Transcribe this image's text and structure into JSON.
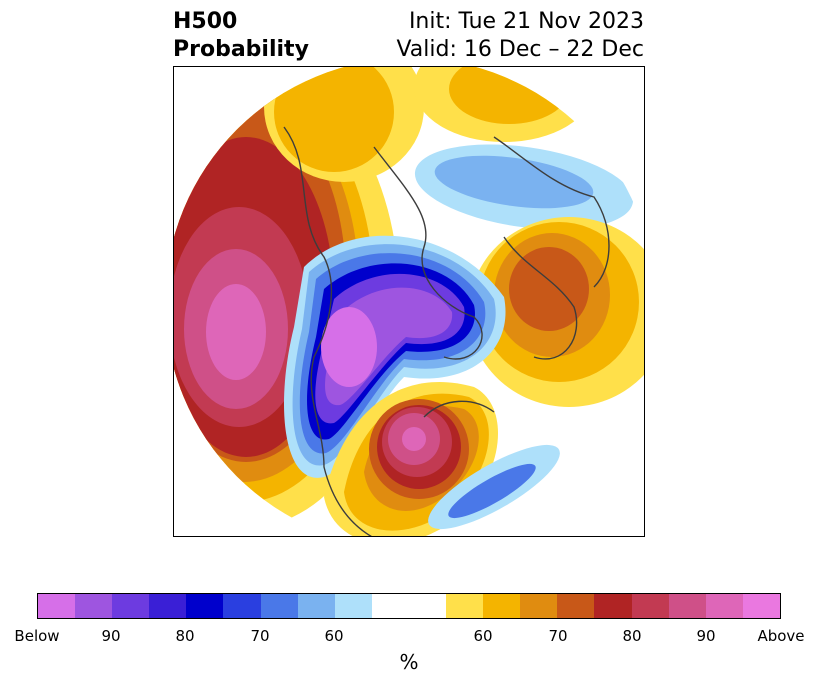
{
  "header": {
    "product_line1": "H500",
    "product_line2": "Probability",
    "init": "Init: Tue 21 Nov 2023",
    "valid": "Valid: 16 Dec – 22 Dec"
  },
  "colorbar": {
    "below_colors": [
      "#d66fe8",
      "#9e55e0",
      "#6d3be0",
      "#3a1fd6",
      "#0000cc",
      "#2a3fe0",
      "#4a78e8",
      "#7ab2f0",
      "#aee0fa"
    ],
    "neutral_color": "#ffffff",
    "above_colors": [
      "#ffe04a",
      "#f4b400",
      "#e08c10",
      "#c85818",
      "#b02424",
      "#c23a52",
      "#cf5088",
      "#de66b8",
      "#ea78e0"
    ],
    "ticks": [
      {
        "label": "Below"
      },
      {
        "label": "90"
      },
      {
        "label": "80"
      },
      {
        "label": "70"
      },
      {
        "label": "60"
      },
      {
        "label": "60"
      },
      {
        "label": "70"
      },
      {
        "label": "80"
      },
      {
        "label": "90"
      },
      {
        "label": "Above"
      }
    ],
    "unit": "%"
  }
}
